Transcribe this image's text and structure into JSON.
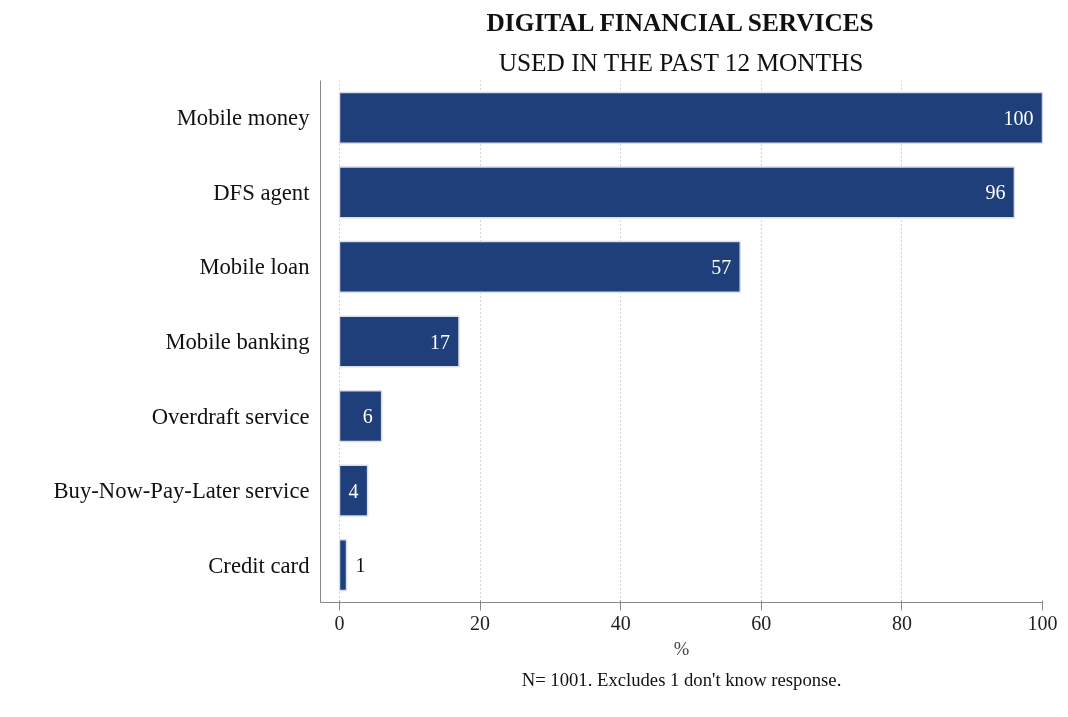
{
  "chart_data": {
    "type": "bar",
    "orientation": "horizontal",
    "title": "DIGITAL FINANCIAL SERVICES",
    "subtitle": "USED IN THE PAST 12 MONTHS",
    "xlabel": "%",
    "categories": [
      "Mobile money",
      "DFS agent",
      "Mobile loan",
      "Mobile banking",
      "Overdraft service",
      "Buy-Now-Pay-Later service",
      "Credit card"
    ],
    "values": [
      100,
      96,
      57,
      17,
      6,
      4,
      1
    ],
    "color": "#1f3f7a",
    "data_labels": true,
    "xlim": [
      -2.7,
      100
    ],
    "xticks": [
      0,
      20,
      40,
      60,
      80,
      100
    ],
    "grid": "x",
    "annotations": [
      "N= 1001. Excludes 1 don't know response."
    ]
  }
}
